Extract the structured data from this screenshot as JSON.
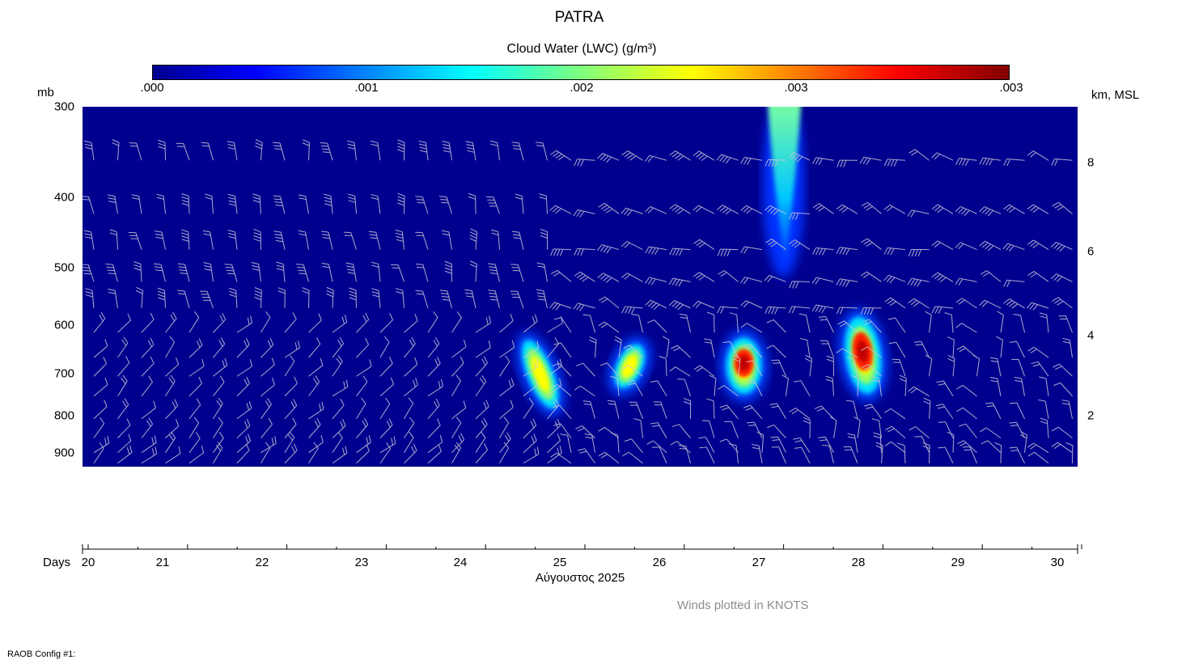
{
  "title": "PATRA",
  "colorbar": {
    "title": "Cloud Water (LWC) (g/m³)",
    "ticks": [
      ".000",
      ".001",
      ".002",
      ".003",
      ".003"
    ],
    "colors": [
      "#00008f",
      "#0000ff",
      "#00ffff",
      "#7fff7f",
      "#ffff00",
      "#ff0000",
      "#800000"
    ]
  },
  "chart_data": {
    "type": "heatmap",
    "title": "PATRA",
    "xlabel": "Αύγουστος 2025",
    "x_axis_name": "Days",
    "ylabel_left": "mb",
    "ylabel_right": "km, MSL",
    "x_ticks": [
      20,
      21,
      22,
      23,
      24,
      25,
      26,
      27,
      28,
      29,
      30
    ],
    "x_tick_labels": [
      "20",
      "21",
      "22",
      "23",
      "24",
      "25",
      "26",
      "27",
      "28",
      "29",
      "30"
    ],
    "y_ticks_mb": [
      300,
      400,
      500,
      600,
      700,
      800,
      900
    ],
    "y_tick_labels_mb": [
      "300",
      "400",
      "500",
      "600",
      "700",
      "800",
      "900"
    ],
    "y_ticks_km": [
      2,
      4,
      6,
      8
    ],
    "y_tick_labels_km": [
      "2",
      "4",
      "6",
      "8"
    ],
    "xlim": [
      20,
      30.2
    ],
    "ylim_mb": [
      300,
      930
    ],
    "background_value": 0.0,
    "clouds": [
      {
        "day": 24.55,
        "pressure_top": 620,
        "pressure_bottom": 780,
        "peak_lwc": 0.0022
      },
      {
        "day": 25.45,
        "pressure_top": 630,
        "pressure_bottom": 730,
        "peak_lwc": 0.0021
      },
      {
        "day": 26.6,
        "pressure_top": 620,
        "pressure_bottom": 740,
        "peak_lwc": 0.0032
      },
      {
        "day": 27.0,
        "pressure_top": 300,
        "pressure_bottom": 490,
        "peak_lwc": 0.0017
      },
      {
        "day": 27.8,
        "pressure_top": 580,
        "pressure_bottom": 740,
        "peak_lwc": 0.003
      }
    ],
    "wind_units": "KNOTS"
  },
  "winds_note": "Winds plotted in KNOTS",
  "config_label": "RAOB Config #1:"
}
